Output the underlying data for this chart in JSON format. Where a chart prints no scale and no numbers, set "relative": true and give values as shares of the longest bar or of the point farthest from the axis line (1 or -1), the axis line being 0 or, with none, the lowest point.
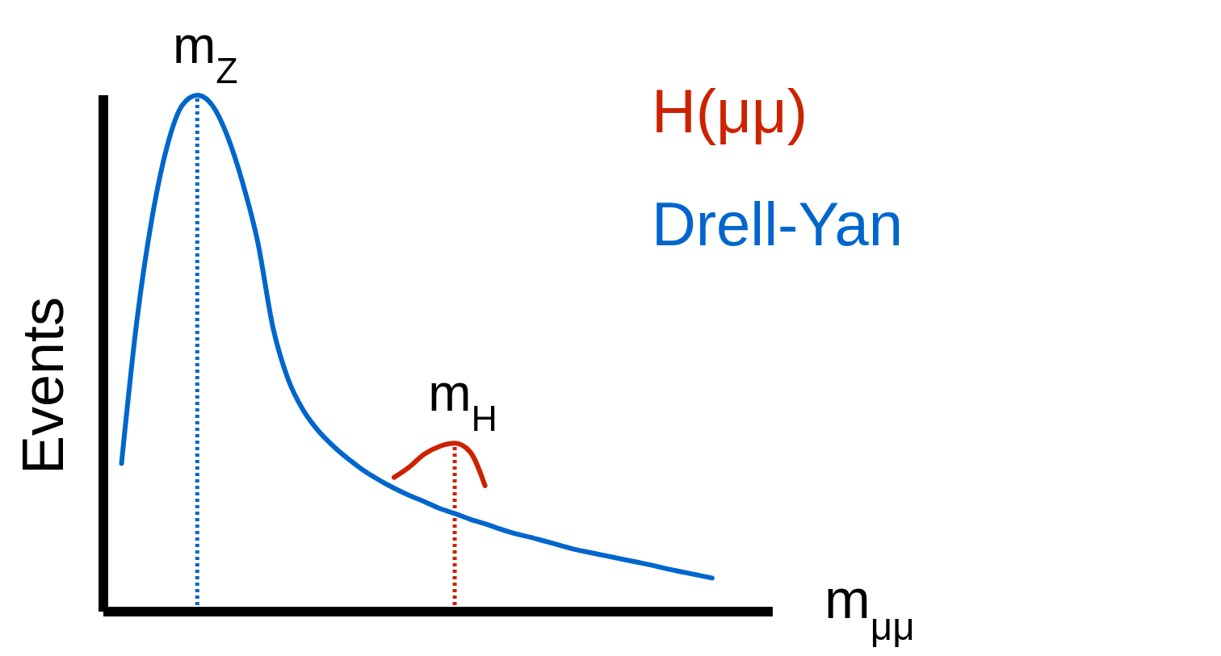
{
  "chart_data": {
    "type": "line",
    "relative": true,
    "xlabel": "m$_{μμ}$",
    "ylabel": "Events",
    "categories": [
      null,
      null,
      null,
      null,
      null,
      null,
      null,
      null,
      null,
      null,
      null,
      null,
      null,
      null,
      null,
      null,
      null,
      null,
      null,
      null,
      null,
      null,
      null,
      null,
      null,
      null,
      null,
      null,
      null,
      null,
      null,
      null,
      null,
      null,
      null,
      null,
      null,
      null,
      null,
      null
    ],
    "series": [
      {
        "name": "H(μμ)",
        "color": "#cc2200",
        "values": [
          null,
          null,
          null,
          null,
          null,
          null,
          null,
          null,
          null,
          null,
          null,
          null,
          null,
          null,
          null,
          null,
          null,
          null,
          0.26,
          0.28,
          0.305,
          0.32,
          0.326,
          0.31,
          0.244,
          null,
          null,
          null,
          null,
          null,
          null,
          null,
          null,
          null,
          null,
          null,
          null,
          null,
          null,
          null
        ]
      },
      {
        "name": "Drell-Yan",
        "color": "#0066cc",
        "values": [
          0.287,
          0.56,
          0.76,
          0.9,
          0.98,
          1.0,
          0.98,
          0.92,
          0.83,
          0.715,
          0.55,
          0.45,
          0.39,
          0.35,
          0.32,
          0.295,
          0.273,
          0.255,
          0.239,
          0.225,
          0.213,
          0.2,
          0.19,
          0.179,
          0.17,
          0.16,
          0.151,
          0.144,
          0.136,
          0.128,
          0.12,
          0.114,
          0.108,
          0.102,
          0.096,
          0.09,
          0.083,
          0.077,
          0.071,
          0.065
        ]
      }
    ],
    "annotations": [
      "m$_{Z}$",
      "m$_{H}$"
    ],
    "legend": "top right",
    "marker": "none",
    "line_style": "solid"
  }
}
